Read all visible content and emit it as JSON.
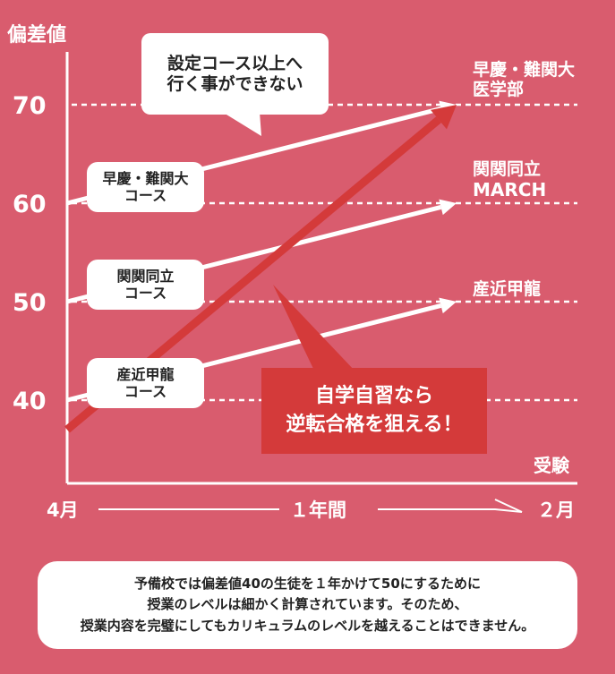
{
  "y_axis": {
    "label": "偏差値",
    "ticks": [
      {
        "label": "70",
        "value": 70
      },
      {
        "label": "60",
        "value": 60
      },
      {
        "label": "50",
        "value": 50
      },
      {
        "label": "40",
        "value": 40
      }
    ]
  },
  "x_axis": {
    "start_label": "4月",
    "middle_label": "１年間",
    "end_label": "２月",
    "exam_label": "受験"
  },
  "courses": [
    {
      "label_line1": "早慶・難関大",
      "label_line2": "コース",
      "start": 60,
      "end": 70,
      "target_line1": "早慶・難関大",
      "target_line2": "医学部"
    },
    {
      "label_line1": "関関同立",
      "label_line2": "コース",
      "start": 50,
      "end": 60,
      "target_line1": "関関同立",
      "target_line2": "MARCH"
    },
    {
      "label_line1": "産近甲龍",
      "label_line2": "コース",
      "start": 40,
      "end": 50,
      "target_line1": "産近甲龍",
      "target_line2": ""
    }
  ],
  "callout": {
    "line1": "設定コース以上へ",
    "line2": "行く事ができない"
  },
  "self_study": {
    "line1": "自学自習なら",
    "line2": "逆転合格を狙える！",
    "start": 37,
    "end": 70
  },
  "note": {
    "line1": "予備校では偏差値40の生徒を１年かけて50にするために",
    "line2": "授業のレベルは細かく計算されています。そのため、",
    "line3": "授業内容を完璧にしてもカリキュラムのレベルを越えることはできません。"
  },
  "colors": {
    "background": "#d95c6e",
    "accent_red": "#d43a3a",
    "white": "#ffffff"
  }
}
